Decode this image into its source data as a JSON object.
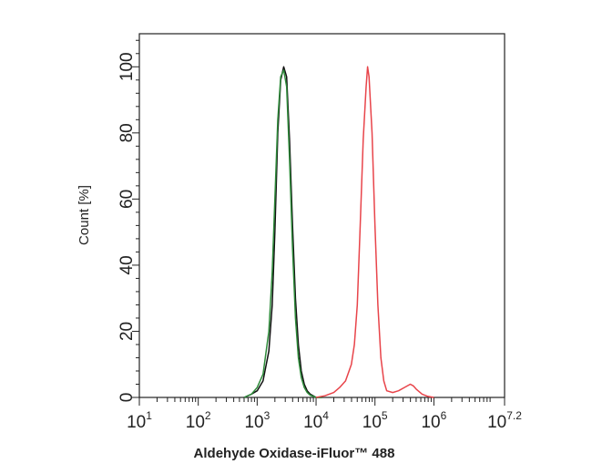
{
  "chart_data": {
    "type": "line",
    "title": "",
    "xlabel": "Aldehyde Oxidase-iFluor™ 488",
    "ylabel": "Count [%]",
    "xscale": "log",
    "xlim": [
      10,
      15848931.9
    ],
    "ylim": [
      0,
      110
    ],
    "grid": false,
    "legend": "none",
    "x_ticks": [
      {
        "base": "10",
        "exp": "1",
        "value": 10
      },
      {
        "base": "10",
        "exp": "2",
        "value": 100
      },
      {
        "base": "10",
        "exp": "3",
        "value": 1000
      },
      {
        "base": "10",
        "exp": "4",
        "value": 10000
      },
      {
        "base": "10",
        "exp": "5",
        "value": 100000
      },
      {
        "base": "10",
        "exp": "6",
        "value": 1000000
      },
      {
        "base": "10",
        "exp": "7.2",
        "value": 15848931.9
      }
    ],
    "y_ticks": [
      "0",
      "20",
      "40",
      "60",
      "80",
      "100"
    ],
    "series": [
      {
        "color": "#111111",
        "x": [
          600,
          800,
          1000,
          1260,
          1580,
          1800,
          2000,
          2240,
          2510,
          2820,
          3160,
          3550,
          3980,
          4470,
          5010,
          5620,
          6310,
          7080,
          7940,
          8910,
          10000,
          12600
        ],
        "y": [
          0,
          1,
          2,
          5,
          14,
          28,
          50,
          80,
          96,
          100,
          97,
          78,
          52,
          30,
          16,
          8,
          4,
          2,
          1,
          0.5,
          0,
          0
        ]
      },
      {
        "color": "#2e8b3a",
        "x": [
          600,
          800,
          1000,
          1260,
          1580,
          1800,
          2000,
          2240,
          2510,
          2820,
          3160,
          3550,
          3980,
          4470,
          5010,
          5620,
          6310,
          7080,
          7940,
          10000,
          12600
        ],
        "y": [
          0,
          1,
          3,
          7,
          20,
          38,
          60,
          84,
          97,
          99,
          94,
          72,
          45,
          24,
          12,
          6,
          3,
          1.5,
          0.7,
          0,
          0
        ]
      },
      {
        "color": "#e8444a",
        "x": [
          10000,
          14100,
          20000,
          25100,
          31600,
          39800,
          44700,
          50100,
          56200,
          63100,
          70800,
          75000,
          79400,
          89100,
          100000,
          112000,
          126000,
          141000,
          158000,
          200000,
          251000,
          316000,
          398000,
          447000,
          501000,
          631000,
          794000,
          1000000
        ],
        "y": [
          0,
          0.5,
          1.5,
          3,
          5,
          10,
          16,
          28,
          52,
          78,
          94,
          100,
          97,
          80,
          52,
          28,
          12,
          5,
          2,
          1.5,
          2,
          3,
          4,
          3.5,
          2.5,
          1,
          0.3,
          0
        ]
      }
    ]
  }
}
